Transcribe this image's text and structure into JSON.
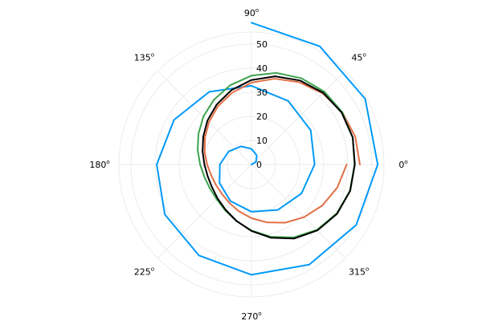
{
  "chart_data": {
    "type": "line",
    "projection": "polar",
    "grid": true,
    "legend": "none",
    "rlim": [
      0,
      55
    ],
    "radial_ticks": [
      0,
      10,
      20,
      30,
      40,
      50
    ],
    "radial_tick_labels": [
      "0",
      "10",
      "20",
      "30",
      "40",
      "50"
    ],
    "angular_ticks": [
      0,
      45,
      90,
      135,
      180,
      225,
      270,
      315
    ],
    "angular_tick_labels": [
      "0",
      "45",
      "90",
      "135",
      "180",
      "225",
      "270",
      "315"
    ],
    "angular_tick_suffix": "o",
    "series": [
      {
        "color": "#009af9",
        "theta_deg": [
          0,
          30,
          60,
          90,
          120,
          150,
          180,
          210,
          240,
          270,
          300,
          330,
          360,
          390,
          420,
          450,
          480,
          510,
          540,
          570,
          600,
          630,
          660,
          690,
          720,
          750,
          780,
          810
        ],
        "r": [
          0,
          2.2,
          4.4,
          6.5,
          8.7,
          10.9,
          13.1,
          15.3,
          17.5,
          19.6,
          21.8,
          24.0,
          26.2,
          28.4,
          30.5,
          32.7,
          34.9,
          37.1,
          39.3,
          41.5,
          43.6,
          45.8,
          48.0,
          50.2,
          52.4,
          54.5,
          56.7,
          58.9
        ]
      },
      {
        "color": "#e26f46",
        "theta_deg": [
          0,
          15,
          30,
          45,
          60,
          75,
          90,
          105,
          120,
          135,
          150,
          165,
          180,
          195,
          210,
          225,
          240,
          255,
          270,
          285,
          300,
          315,
          330,
          345,
          360
        ],
        "r": [
          45,
          44.6,
          43.5,
          41.8,
          39.5,
          36.9,
          34,
          30.9,
          27.9,
          24.9,
          22.3,
          20.1,
          18.4,
          17.3,
          17,
          17.3,
          18.4,
          20.1,
          22.3,
          24.9,
          27.9,
          30.9,
          34,
          36.9,
          39.5
        ]
      },
      {
        "color": "#3da44d",
        "theta_deg": [
          0,
          15,
          30,
          45,
          60,
          75,
          90,
          105,
          120,
          135,
          150,
          165,
          180,
          195,
          210,
          225,
          240,
          255,
          270,
          285,
          300,
          315,
          330,
          345,
          360
        ],
        "r": [
          42.8,
          43.5,
          43.5,
          42.8,
          41.4,
          39.4,
          36.9,
          34.1,
          31.1,
          28.2,
          25.4,
          23.1,
          21.3,
          20.2,
          19.9,
          20.4,
          21.9,
          24.3,
          27.4,
          31.1,
          35.0,
          38.4,
          40.8,
          42.3,
          42.8
        ]
      },
      {
        "color": "#000000",
        "theta_deg": [
          0,
          15,
          30,
          45,
          60,
          75,
          90,
          105,
          120,
          135,
          150,
          165,
          180,
          195,
          210,
          225,
          240,
          255,
          270,
          285,
          300,
          315,
          330,
          345,
          360
        ],
        "r": [
          42.9,
          43.5,
          43.2,
          42.1,
          40.3,
          37.9,
          35.1,
          32.0,
          28.8,
          25.8,
          23.1,
          21.0,
          19.5,
          18.8,
          18.9,
          19.9,
          21.6,
          24.2,
          27.6,
          31.5,
          35.5,
          38.7,
          41.0,
          42.4,
          42.9
        ]
      }
    ]
  }
}
